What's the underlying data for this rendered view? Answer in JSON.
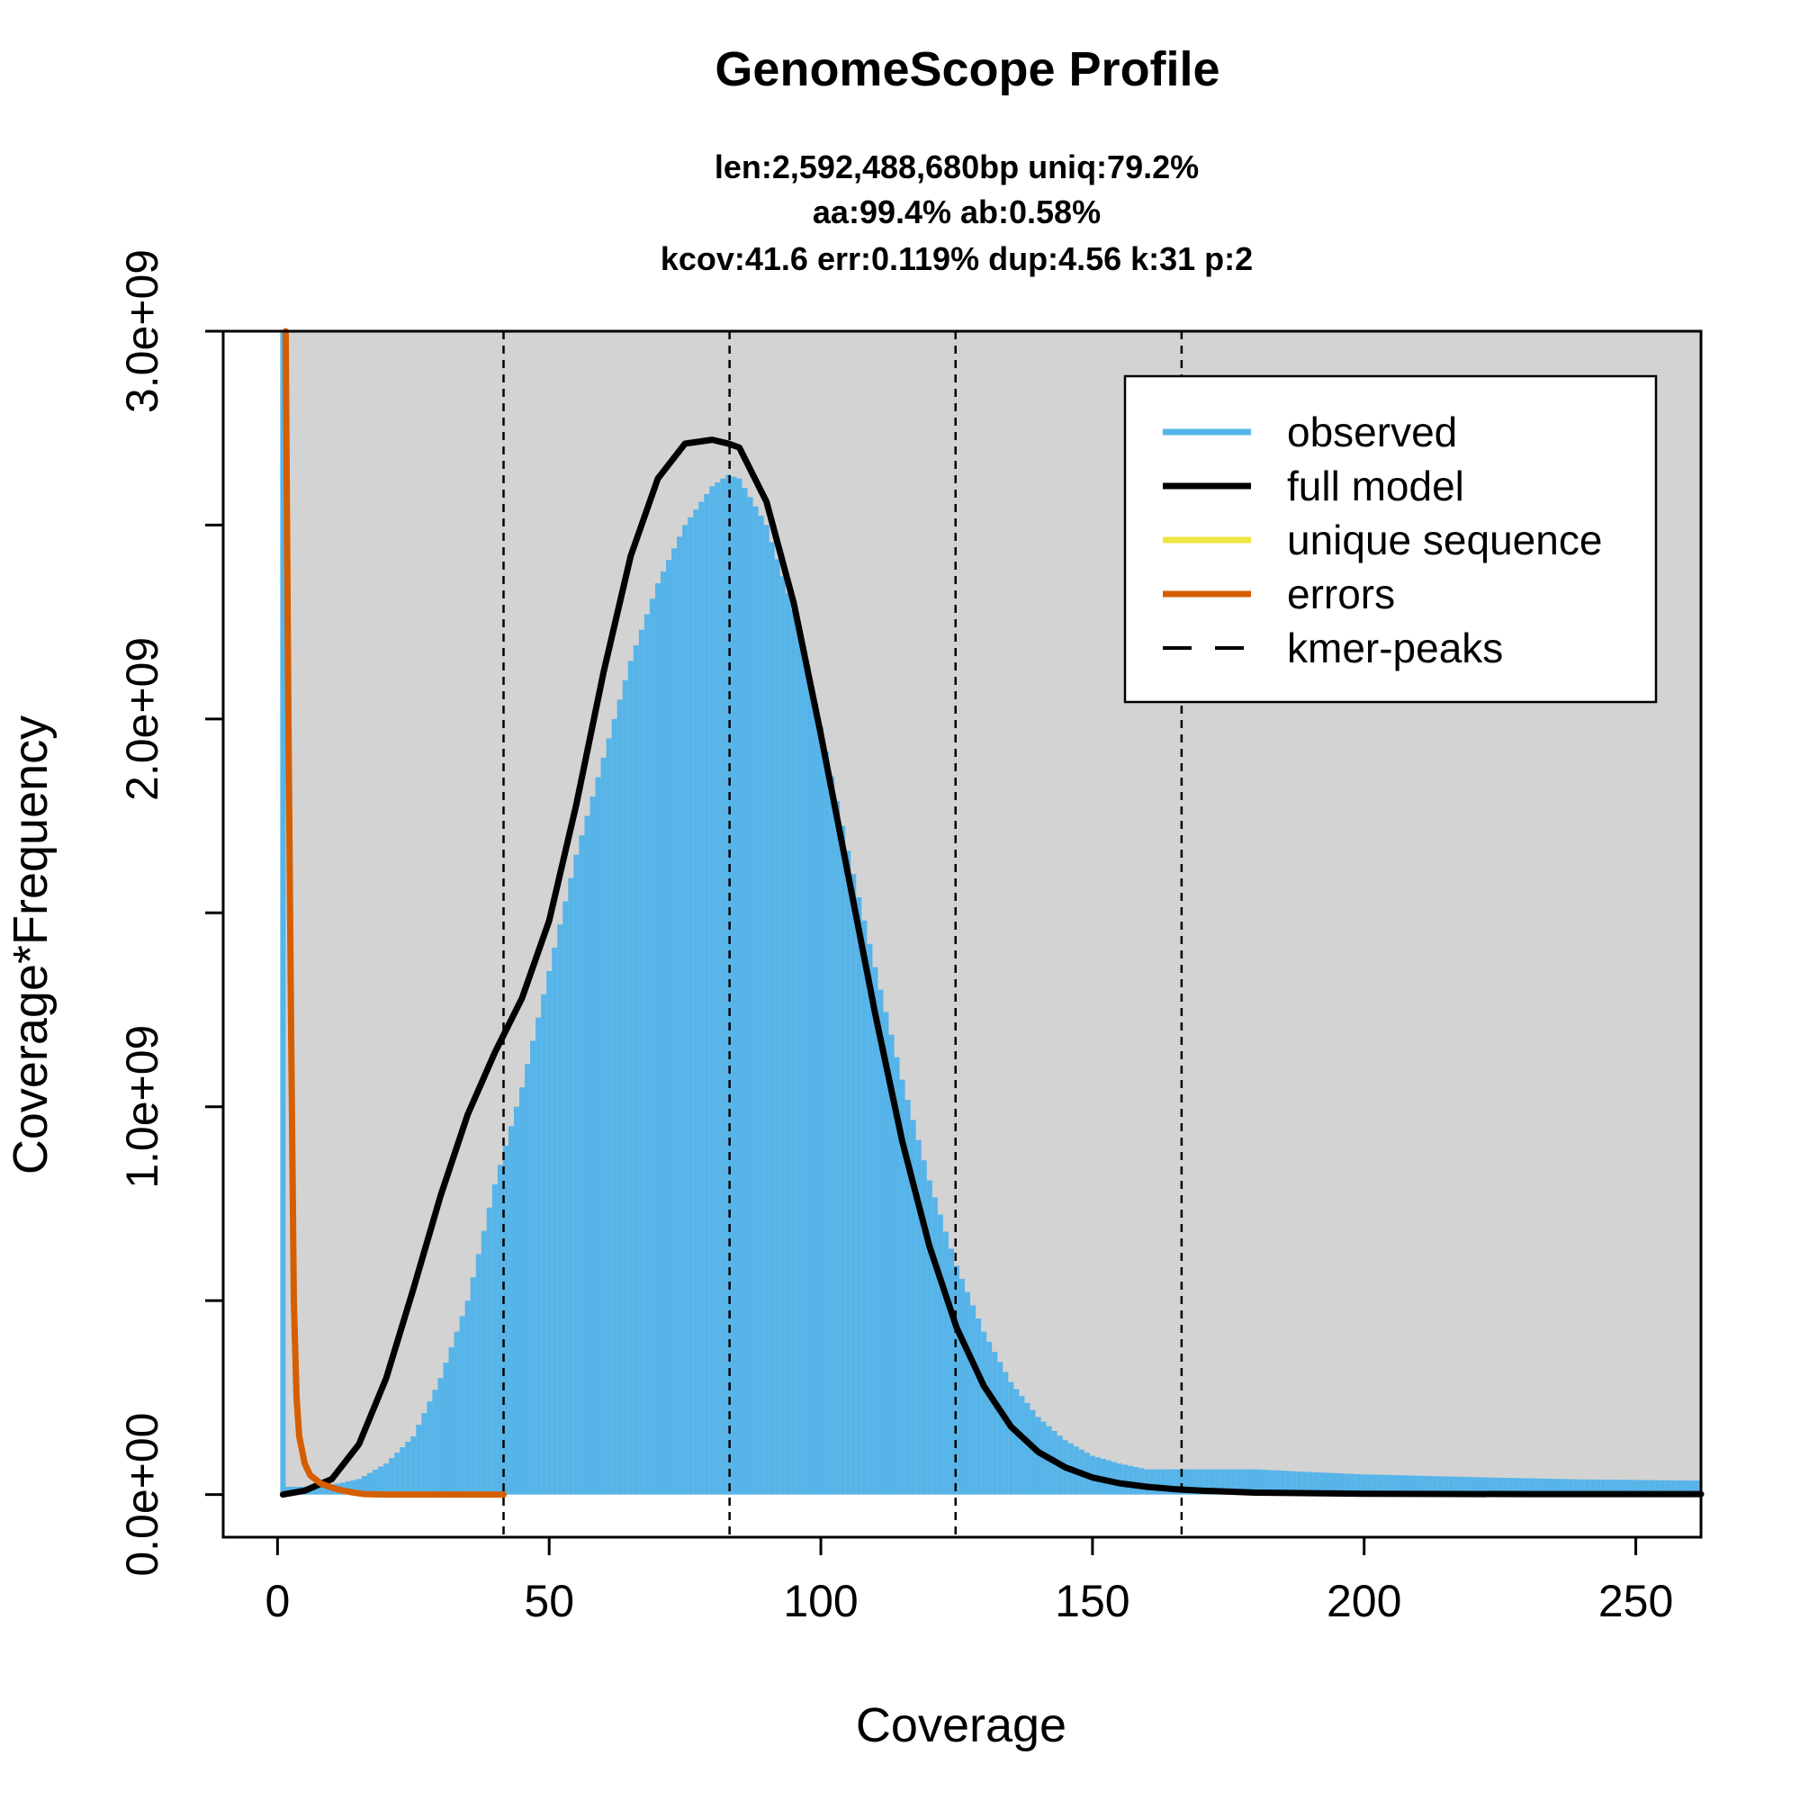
{
  "chart_data": {
    "type": "area",
    "title": "GenomeScope Profile",
    "subtitle_lines": [
      "len:2,592,488,680bp uniq:79.2%",
      "aa:99.4% ab:0.58%",
      "kcov:41.6 err:0.119%  dup:4.56  k:31 p:2"
    ],
    "xlabel": "Coverage",
    "ylabel": "Coverage*Frequency",
    "xlim": [
      -10,
      262
    ],
    "ylim": [
      -110000000.0,
      3000000000.0
    ],
    "x_ticks": [
      0,
      50,
      100,
      150,
      200,
      250
    ],
    "x_tick_labels": [
      "0",
      "50",
      "100",
      "150",
      "200",
      "250"
    ],
    "y_ticks": [
      0,
      500000000,
      1000000000,
      1500000000,
      2000000000,
      2500000000,
      3000000000
    ],
    "y_tick_labels": [
      "0.0e+00",
      "",
      "1.0e+09",
      "",
      "2.0e+09",
      "",
      "3.0e+09"
    ],
    "grid": false,
    "background_color": "#d3d3d3",
    "legend_position": "top-right",
    "legend": [
      {
        "label": "observed",
        "color": "#56b4e9",
        "style": "solid"
      },
      {
        "label": "full model",
        "color": "#000000",
        "style": "solid"
      },
      {
        "label": "unique sequence",
        "color": "#f0e442",
        "style": "solid"
      },
      {
        "label": "errors",
        "color": "#d55e00",
        "style": "solid"
      },
      {
        "label": "kmer-peaks",
        "color": "#000000",
        "style": "dashed"
      }
    ],
    "kmer_peaks": [
      41.6,
      83.2,
      124.8,
      166.4
    ],
    "series": [
      {
        "name": "observed",
        "kind": "bars",
        "color": "#56b4e9",
        "x": [
          1,
          2,
          5,
          10,
          15,
          20,
          25,
          30,
          35,
          40,
          45,
          50,
          55,
          60,
          65,
          70,
          75,
          80,
          83,
          85,
          90,
          95,
          100,
          105,
          110,
          115,
          120,
          125,
          130,
          135,
          140,
          145,
          150,
          155,
          160,
          170,
          180,
          190,
          200,
          220,
          240,
          262
        ],
        "values": [
          3000000000.0,
          20000000.0,
          20000000.0,
          25000000.0,
          40000000.0,
          80000000.0,
          150000000.0,
          300000000.0,
          500000000.0,
          800000000.0,
          1050000000.0,
          1350000000.0,
          1650000000.0,
          1900000000.0,
          2150000000.0,
          2350000000.0,
          2500000000.0,
          2600000000.0,
          2630000000.0,
          2620000000.0,
          2500000000.0,
          2280000000.0,
          1980000000.0,
          1660000000.0,
          1360000000.0,
          1070000000.0,
          810000000.0,
          590000000.0,
          420000000.0,
          290000000.0,
          200000000.0,
          140000000.0,
          100000000.0,
          80000000.0,
          65000000.0,
          65000000.0,
          65000000.0,
          58000000.0,
          52000000.0,
          45000000.0,
          39000000.0,
          36000000.0
        ]
      },
      {
        "name": "full model",
        "kind": "line",
        "color": "#000000",
        "x": [
          1,
          5,
          10,
          15,
          20,
          25,
          30,
          35,
          40,
          45,
          50,
          55,
          60,
          65,
          70,
          75,
          80,
          83,
          85,
          90,
          95,
          100,
          105,
          110,
          115,
          120,
          125,
          130,
          135,
          140,
          145,
          150,
          155,
          160,
          165,
          170,
          180,
          200,
          230,
          262
        ],
        "values": [
          0,
          10000000.0,
          40000000.0,
          130000000.0,
          300000000.0,
          530000000.0,
          770000000.0,
          980000000.0,
          1140000000.0,
          1280000000.0,
          1480000000.0,
          1780000000.0,
          2120000000.0,
          2420000000.0,
          2620000000.0,
          2710000000.0,
          2720000000.0,
          2710000000.0,
          2700000000.0,
          2560000000.0,
          2300000000.0,
          1960000000.0,
          1600000000.0,
          1240000000.0,
          910000000.0,
          640000000.0,
          430000000.0,
          280000000.0,
          175000000.0,
          110000000.0,
          70000000.0,
          44000000.0,
          29000000.0,
          20000000.0,
          14000000.0,
          10000000.0,
          5000000.0,
          2000000.0,
          1000000.0,
          1000000.0
        ]
      },
      {
        "name": "errors",
        "kind": "line",
        "color": "#d55e00",
        "x": [
          1.5,
          2,
          2.5,
          3,
          3.5,
          4,
          5,
          6,
          8,
          10,
          12,
          14,
          16,
          20,
          30,
          41.6
        ],
        "values": [
          3000000000.0,
          2000000000.0,
          1200000000.0,
          500000000.0,
          250000000.0,
          150000000.0,
          80000000.0,
          50000000.0,
          28000000.0,
          18000000.0,
          10000000.0,
          5000000.0,
          1000000.0,
          0,
          0,
          0
        ]
      },
      {
        "name": "unique sequence",
        "kind": "line",
        "color": "#f0e442",
        "x": [],
        "values": []
      }
    ]
  }
}
